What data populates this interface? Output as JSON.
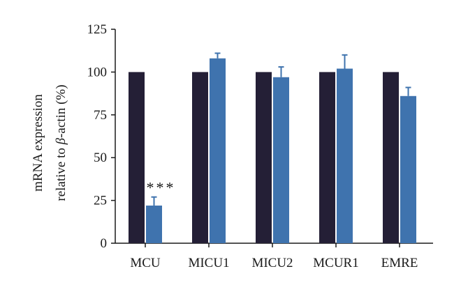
{
  "chart_data": {
    "type": "bar",
    "title": "",
    "xlabel": "",
    "ylabel_line1": "mRNA expression",
    "ylabel_line2_prefix": "relative to ",
    "ylabel_line2_greek": "β",
    "ylabel_line2_suffix": "-actin (%)",
    "ylim": [
      0,
      125
    ],
    "yticks": [
      0,
      25,
      50,
      75,
      100,
      125
    ],
    "grid": false,
    "legend": "none",
    "categories": [
      "MCU",
      "MICU1",
      "MICU2",
      "MCUR1",
      "EMRE"
    ],
    "series": [
      {
        "color": "#241f36",
        "values": [
          100,
          100,
          100,
          100,
          100
        ],
        "errors": [
          0,
          0,
          0,
          0,
          0
        ]
      },
      {
        "color": "#3f73ae",
        "values": [
          22,
          108,
          97,
          102,
          86
        ],
        "errors": [
          5,
          3,
          6,
          8,
          5
        ]
      }
    ],
    "annotations": [
      {
        "category": "MCU",
        "series": 1,
        "text": "***"
      }
    ]
  }
}
